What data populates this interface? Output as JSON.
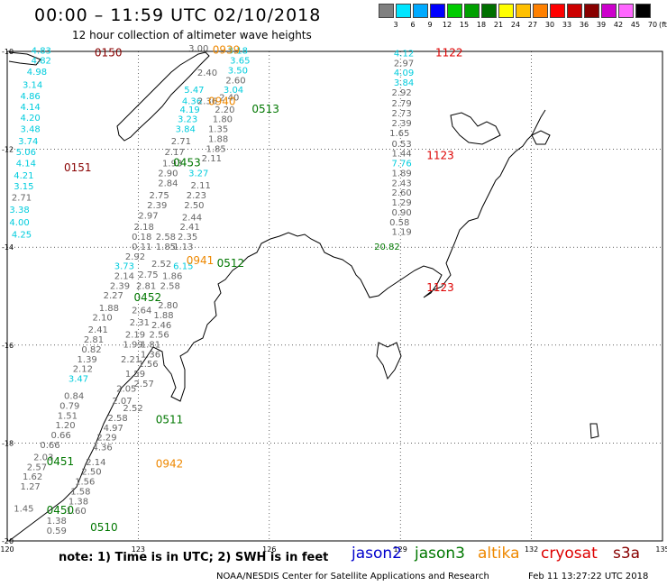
{
  "title": "00:00 – 11:59 UTC 02/10/2018",
  "subtitle": "12 hour collection of altimeter wave heights",
  "scale": {
    "unit": "(ft)",
    "bins": [
      {
        "label": "3",
        "color": "#808080"
      },
      {
        "label": "6",
        "color": "#00e5ff"
      },
      {
        "label": "9",
        "color": "#00aaff"
      },
      {
        "label": "12",
        "color": "#0000ff"
      },
      {
        "label": "15",
        "color": "#00cc00"
      },
      {
        "label": "18",
        "color": "#00a000"
      },
      {
        "label": "21",
        "color": "#007000"
      },
      {
        "label": "24",
        "color": "#ffff00"
      },
      {
        "label": "27",
        "color": "#ffc000"
      },
      {
        "label": "30",
        "color": "#ff8000"
      },
      {
        "label": "33",
        "color": "#ff0000"
      },
      {
        "label": "36",
        "color": "#cc0000"
      },
      {
        "label": "39",
        "color": "#880000"
      },
      {
        "label": "42",
        "color": "#cc00cc"
      },
      {
        "label": "45",
        "color": "#ff66ff"
      },
      {
        "label": "70",
        "color": "#000000"
      }
    ]
  },
  "axes": {
    "lat_labels": [
      "-10",
      "-12",
      "-14",
      "-16",
      "-18",
      "-20"
    ],
    "lon_labels": [
      "120",
      "123",
      "126",
      "129",
      "132",
      "135"
    ]
  },
  "colors": {
    "gray": "#666666",
    "cyan": "#00ccdd",
    "green": "#007700",
    "orange": "#ee8800",
    "red": "#dd0000",
    "darkred": "#880000"
  },
  "times": [
    {
      "text": "0150",
      "color": "darkred",
      "lon": 122.0,
      "lat": -10.1
    },
    {
      "text": "0151",
      "color": "darkred",
      "lon": 121.3,
      "lat": -12.45
    },
    {
      "text": "0939",
      "color": "orange",
      "lon": 124.7,
      "lat": -10.05
    },
    {
      "text": "0940",
      "color": "orange",
      "lon": 124.6,
      "lat": -11.1
    },
    {
      "text": "0941",
      "color": "orange",
      "lon": 124.1,
      "lat": -14.35
    },
    {
      "text": "0942",
      "color": "orange",
      "lon": 123.4,
      "lat": -18.5
    },
    {
      "text": "0513",
      "color": "green",
      "lon": 125.6,
      "lat": -11.25
    },
    {
      "text": "0453",
      "color": "green",
      "lon": 123.8,
      "lat": -12.35
    },
    {
      "text": "0512",
      "color": "green",
      "lon": 124.8,
      "lat": -14.4
    },
    {
      "text": "0452",
      "color": "green",
      "lon": 122.9,
      "lat": -15.1
    },
    {
      "text": "0511",
      "color": "green",
      "lon": 123.4,
      "lat": -17.6
    },
    {
      "text": "0451",
      "color": "green",
      "lon": 120.9,
      "lat": -18.45
    },
    {
      "text": "0450",
      "color": "green",
      "lon": 120.9,
      "lat": -19.45
    },
    {
      "text": "0510",
      "color": "green",
      "lon": 121.9,
      "lat": -19.8
    },
    {
      "text": "1122",
      "color": "red",
      "lon": 129.8,
      "lat": -10.1
    },
    {
      "text": "1123",
      "color": "red",
      "lon": 129.6,
      "lat": -12.2
    },
    {
      "text": "1123",
      "color": "red",
      "lon": 129.6,
      "lat": -14.9
    }
  ],
  "readings": [
    {
      "v": "4.83",
      "c": "cyan",
      "lon": 120.55,
      "lat": -10.05
    },
    {
      "v": "4.82",
      "c": "cyan",
      "lon": 120.55,
      "lat": -10.25
    },
    {
      "v": "4.98",
      "c": "cyan",
      "lon": 120.45,
      "lat": -10.48
    },
    {
      "v": "3.14",
      "c": "cyan",
      "lon": 120.35,
      "lat": -10.75
    },
    {
      "v": "4.86",
      "c": "cyan",
      "lon": 120.3,
      "lat": -10.98
    },
    {
      "v": "4.14",
      "c": "cyan",
      "lon": 120.3,
      "lat": -11.2
    },
    {
      "v": "4.20",
      "c": "cyan",
      "lon": 120.3,
      "lat": -11.42
    },
    {
      "v": "3.48",
      "c": "cyan",
      "lon": 120.3,
      "lat": -11.65
    },
    {
      "v": "3.74",
      "c": "cyan",
      "lon": 120.25,
      "lat": -11.9
    },
    {
      "v": "5.06",
      "c": "cyan",
      "lon": 120.2,
      "lat": -12.12
    },
    {
      "v": "4.14",
      "c": "cyan",
      "lon": 120.2,
      "lat": -12.35
    },
    {
      "v": "4.21",
      "c": "cyan",
      "lon": 120.15,
      "lat": -12.6
    },
    {
      "v": "3.15",
      "c": "cyan",
      "lon": 120.15,
      "lat": -12.82
    },
    {
      "v": "2.71",
      "c": "gray",
      "lon": 120.1,
      "lat": -13.05
    },
    {
      "v": "3.38",
      "c": "cyan",
      "lon": 120.05,
      "lat": -13.3
    },
    {
      "v": "4.00",
      "c": "cyan",
      "lon": 120.05,
      "lat": -13.55
    },
    {
      "v": "4.25",
      "c": "cyan",
      "lon": 120.1,
      "lat": -13.8
    },
    {
      "v": "3.00",
      "c": "gray",
      "lon": 124.15,
      "lat": -10.0
    },
    {
      "v": "3.18",
      "c": "cyan",
      "lon": 125.05,
      "lat": -10.05
    },
    {
      "v": "2.40",
      "c": "gray",
      "lon": 124.35,
      "lat": -10.5
    },
    {
      "v": "3.65",
      "c": "cyan",
      "lon": 125.1,
      "lat": -10.25
    },
    {
      "v": "3.50",
      "c": "cyan",
      "lon": 125.05,
      "lat": -10.45
    },
    {
      "v": "2.60",
      "c": "gray",
      "lon": 125.0,
      "lat": -10.65
    },
    {
      "v": "3.04",
      "c": "cyan",
      "lon": 124.95,
      "lat": -10.85
    },
    {
      "v": "5.47",
      "c": "cyan",
      "lon": 124.05,
      "lat": -10.85
    },
    {
      "v": "2.40",
      "c": "gray",
      "lon": 124.85,
      "lat": -11.0
    },
    {
      "v": "4.36",
      "c": "cyan",
      "lon": 124.0,
      "lat": -11.08
    },
    {
      "v": "2.36",
      "c": "gray",
      "lon": 124.35,
      "lat": -11.08
    },
    {
      "v": "4.19",
      "c": "cyan",
      "lon": 123.95,
      "lat": -11.25
    },
    {
      "v": "2.20",
      "c": "gray",
      "lon": 124.75,
      "lat": -11.25
    },
    {
      "v": "3.23",
      "c": "cyan",
      "lon": 123.9,
      "lat": -11.45
    },
    {
      "v": "1.80",
      "c": "gray",
      "lon": 124.7,
      "lat": -11.45
    },
    {
      "v": "3.84",
      "c": "cyan",
      "lon": 123.85,
      "lat": -11.65
    },
    {
      "v": "1.35",
      "c": "gray",
      "lon": 124.6,
      "lat": -11.65
    },
    {
      "v": "2.71",
      "c": "gray",
      "lon": 123.75,
      "lat": -11.9
    },
    {
      "v": "1.88",
      "c": "gray",
      "lon": 124.6,
      "lat": -11.85
    },
    {
      "v": "2.17",
      "c": "gray",
      "lon": 123.6,
      "lat": -12.12
    },
    {
      "v": "1.85",
      "c": "gray",
      "lon": 124.55,
      "lat": -12.05
    },
    {
      "v": "1.93",
      "c": "gray",
      "lon": 123.55,
      "lat": -12.35
    },
    {
      "v": "2.11",
      "c": "gray",
      "lon": 124.45,
      "lat": -12.25
    },
    {
      "v": "2.90",
      "c": "gray",
      "lon": 123.45,
      "lat": -12.55
    },
    {
      "v": "3.27",
      "c": "cyan",
      "lon": 124.15,
      "lat": -12.55
    },
    {
      "v": "2.84",
      "c": "gray",
      "lon": 123.45,
      "lat": -12.75
    },
    {
      "v": "2.11",
      "c": "gray",
      "lon": 124.2,
      "lat": -12.8
    },
    {
      "v": "2.75",
      "c": "gray",
      "lon": 123.25,
      "lat": -13.0
    },
    {
      "v": "2.23",
      "c": "gray",
      "lon": 124.1,
      "lat": -13.0
    },
    {
      "v": "2.39",
      "c": "gray",
      "lon": 123.2,
      "lat": -13.2
    },
    {
      "v": "2.50",
      "c": "gray",
      "lon": 124.05,
      "lat": -13.2
    },
    {
      "v": "2.97",
      "c": "gray",
      "lon": 123.0,
      "lat": -13.42
    },
    {
      "v": "2.44",
      "c": "gray",
      "lon": 124.0,
      "lat": -13.45
    },
    {
      "v": "2.18",
      "c": "gray",
      "lon": 122.9,
      "lat": -13.65
    },
    {
      "v": "2.41",
      "c": "gray",
      "lon": 123.95,
      "lat": -13.65
    },
    {
      "v": "0.18",
      "c": "gray",
      "lon": 122.85,
      "lat": -13.85
    },
    {
      "v": "2.58",
      "c": "gray",
      "lon": 123.4,
      "lat": -13.85
    },
    {
      "v": "2.35",
      "c": "gray",
      "lon": 123.9,
      "lat": -13.85
    },
    {
      "v": "0.11",
      "c": "gray",
      "lon": 122.85,
      "lat": -14.05
    },
    {
      "v": "1.85",
      "c": "gray",
      "lon": 123.4,
      "lat": -14.05
    },
    {
      "v": "1.13",
      "c": "gray",
      "lon": 123.8,
      "lat": -14.05
    },
    {
      "v": "2.92",
      "c": "gray",
      "lon": 122.7,
      "lat": -14.25
    },
    {
      "v": "2.52",
      "c": "gray",
      "lon": 123.3,
      "lat": -14.4
    },
    {
      "v": "3.73",
      "c": "cyan",
      "lon": 122.45,
      "lat": -14.45
    },
    {
      "v": "6.15",
      "c": "cyan",
      "lon": 123.8,
      "lat": -14.45
    },
    {
      "v": "2.14",
      "c": "gray",
      "lon": 122.45,
      "lat": -14.65
    },
    {
      "v": "2.75",
      "c": "gray",
      "lon": 123.0,
      "lat": -14.62
    },
    {
      "v": "1.86",
      "c": "gray",
      "lon": 123.55,
      "lat": -14.65
    },
    {
      "v": "2.39",
      "c": "gray",
      "lon": 122.35,
      "lat": -14.85
    },
    {
      "v": "2.81",
      "c": "gray",
      "lon": 122.95,
      "lat": -14.85
    },
    {
      "v": "2.58",
      "c": "gray",
      "lon": 123.5,
      "lat": -14.85
    },
    {
      "v": "2.27",
      "c": "gray",
      "lon": 122.2,
      "lat": -15.05
    },
    {
      "v": "2.80",
      "c": "gray",
      "lon": 123.45,
      "lat": -15.25
    },
    {
      "v": "1.88",
      "c": "gray",
      "lon": 122.1,
      "lat": -15.3
    },
    {
      "v": "2.64",
      "c": "gray",
      "lon": 122.85,
      "lat": -15.35
    },
    {
      "v": "1.88",
      "c": "gray",
      "lon": 123.35,
      "lat": -15.45
    },
    {
      "v": "2.10",
      "c": "gray",
      "lon": 121.95,
      "lat": -15.5
    },
    {
      "v": "2.31",
      "c": "gray",
      "lon": 122.8,
      "lat": -15.6
    },
    {
      "v": "2.46",
      "c": "gray",
      "lon": 123.3,
      "lat": -15.65
    },
    {
      "v": "2.41",
      "c": "gray",
      "lon": 121.85,
      "lat": -15.75
    },
    {
      "v": "2.19",
      "c": "gray",
      "lon": 122.7,
      "lat": -15.85
    },
    {
      "v": "2.56",
      "c": "gray",
      "lon": 123.25,
      "lat": -15.85
    },
    {
      "v": "2.81",
      "c": "gray",
      "lon": 121.75,
      "lat": -15.95
    },
    {
      "v": "1.99",
      "c": "gray",
      "lon": 122.65,
      "lat": -16.05
    },
    {
      "v": "1.81",
      "c": "gray",
      "lon": 123.05,
      "lat": -16.05
    },
    {
      "v": "0.82",
      "c": "gray",
      "lon": 121.7,
      "lat": -16.15
    },
    {
      "v": "1.36",
      "c": "gray",
      "lon": 123.05,
      "lat": -16.25
    },
    {
      "v": "1.39",
      "c": "gray",
      "lon": 121.6,
      "lat": -16.35
    },
    {
      "v": "2.21",
      "c": "gray",
      "lon": 122.6,
      "lat": -16.35
    },
    {
      "v": "1.56",
      "c": "gray",
      "lon": 123.0,
      "lat": -16.45
    },
    {
      "v": "2.12",
      "c": "gray",
      "lon": 121.5,
      "lat": -16.55
    },
    {
      "v": "1.59",
      "c": "gray",
      "lon": 122.7,
      "lat": -16.65
    },
    {
      "v": "3.47",
      "c": "cyan",
      "lon": 121.4,
      "lat": -16.75
    },
    {
      "v": "2.05",
      "c": "gray",
      "lon": 122.5,
      "lat": -16.95
    },
    {
      "v": "2.57",
      "c": "gray",
      "lon": 122.9,
      "lat": -16.85
    },
    {
      "v": "0.84",
      "c": "gray",
      "lon": 121.3,
      "lat": -17.1
    },
    {
      "v": "2.07",
      "c": "gray",
      "lon": 122.4,
      "lat": -17.2
    },
    {
      "v": "0.79",
      "c": "gray",
      "lon": 121.2,
      "lat": -17.3
    },
    {
      "v": "2.52",
      "c": "gray",
      "lon": 122.65,
      "lat": -17.35
    },
    {
      "v": "1.51",
      "c": "gray",
      "lon": 121.15,
      "lat": -17.5
    },
    {
      "v": "2.58",
      "c": "gray",
      "lon": 122.3,
      "lat": -17.55
    },
    {
      "v": "1.20",
      "c": "gray",
      "lon": 121.1,
      "lat": -17.7
    },
    {
      "v": "4.97",
      "c": "gray",
      "lon": 122.2,
      "lat": -17.75
    },
    {
      "v": "0.66",
      "c": "gray",
      "lon": 121.0,
      "lat": -17.9
    },
    {
      "v": "2.29",
      "c": "gray",
      "lon": 122.05,
      "lat": -17.95
    },
    {
      "v": "0.66",
      "c": "gray",
      "lon": 120.75,
      "lat": -18.1
    },
    {
      "v": "4.36",
      "c": "gray",
      "lon": 121.95,
      "lat": -18.15
    },
    {
      "v": "2.03",
      "c": "gray",
      "lon": 120.6,
      "lat": -18.35
    },
    {
      "v": "2.14",
      "c": "gray",
      "lon": 121.8,
      "lat": -18.45
    },
    {
      "v": "2.57",
      "c": "gray",
      "lon": 120.45,
      "lat": -18.55
    },
    {
      "v": "2.50",
      "c": "gray",
      "lon": 121.7,
      "lat": -18.65
    },
    {
      "v": "1.62",
      "c": "gray",
      "lon": 120.35,
      "lat": -18.75
    },
    {
      "v": "1.56",
      "c": "gray",
      "lon": 121.55,
      "lat": -18.85
    },
    {
      "v": "1.27",
      "c": "gray",
      "lon": 120.3,
      "lat": -18.95
    },
    {
      "v": "1.58",
      "c": "gray",
      "lon": 121.45,
      "lat": -19.05
    },
    {
      "v": "1.38",
      "c": "gray",
      "lon": 121.4,
      "lat": -19.25
    },
    {
      "v": "1.45",
      "c": "gray",
      "lon": 120.15,
      "lat": -19.4
    },
    {
      "v": "1.60",
      "c": "gray",
      "lon": 121.35,
      "lat": -19.45
    },
    {
      "v": "1.38",
      "c": "gray",
      "lon": 120.9,
      "lat": -19.65
    },
    {
      "v": "0.59",
      "c": "gray",
      "lon": 120.9,
      "lat": -19.85
    },
    {
      "v": "4.12",
      "c": "cyan",
      "lon": 128.85,
      "lat": -10.1
    },
    {
      "v": "2.97",
      "c": "gray",
      "lon": 128.85,
      "lat": -10.3
    },
    {
      "v": "4.09",
      "c": "cyan",
      "lon": 128.85,
      "lat": -10.5
    },
    {
      "v": "3.84",
      "c": "cyan",
      "lon": 128.85,
      "lat": -10.7
    },
    {
      "v": "2.92",
      "c": "gray",
      "lon": 128.8,
      "lat": -10.9
    },
    {
      "v": "2.79",
      "c": "gray",
      "lon": 128.8,
      "lat": -11.12
    },
    {
      "v": "2.73",
      "c": "gray",
      "lon": 128.8,
      "lat": -11.33
    },
    {
      "v": "2.39",
      "c": "gray",
      "lon": 128.8,
      "lat": -11.53
    },
    {
      "v": "1.65",
      "c": "gray",
      "lon": 128.75,
      "lat": -11.73
    },
    {
      "v": "0.53",
      "c": "gray",
      "lon": 128.8,
      "lat": -11.95
    },
    {
      "v": "1.44",
      "c": "gray",
      "lon": 128.8,
      "lat": -12.15
    },
    {
      "v": "7.76",
      "c": "cyan",
      "lon": 128.8,
      "lat": -12.35
    },
    {
      "v": "1.89",
      "c": "gray",
      "lon": 128.8,
      "lat": -12.55
    },
    {
      "v": "2.43",
      "c": "gray",
      "lon": 128.8,
      "lat": -12.75
    },
    {
      "v": "2.60",
      "c": "gray",
      "lon": 128.8,
      "lat": -12.95
    },
    {
      "v": "1.29",
      "c": "gray",
      "lon": 128.8,
      "lat": -13.15
    },
    {
      "v": "0.90",
      "c": "gray",
      "lon": 128.8,
      "lat": -13.35
    },
    {
      "v": "0.58",
      "c": "gray",
      "lon": 128.75,
      "lat": -13.55
    },
    {
      "v": "1.19",
      "c": "gray",
      "lon": 128.8,
      "lat": -13.75
    },
    {
      "v": "20.82",
      "c": "green",
      "lon": 128.4,
      "lat": -14.05
    }
  ],
  "note": "note: 1) Time is in UTC; 2) SWH is in feet",
  "satellites": [
    {
      "name": "jason2",
      "color": "#0000cc"
    },
    {
      "name": "jason3",
      "color": "#007700"
    },
    {
      "name": "altika",
      "color": "#ee8800"
    },
    {
      "name": "cryosat",
      "color": "#dd0000"
    },
    {
      "name": "s3a",
      "color": "#880000"
    }
  ],
  "footer": "NOAA/NESDIS Center for Satellite Applications and Research",
  "footer_time": "Feb 11 13:27:22 UTC 2018"
}
